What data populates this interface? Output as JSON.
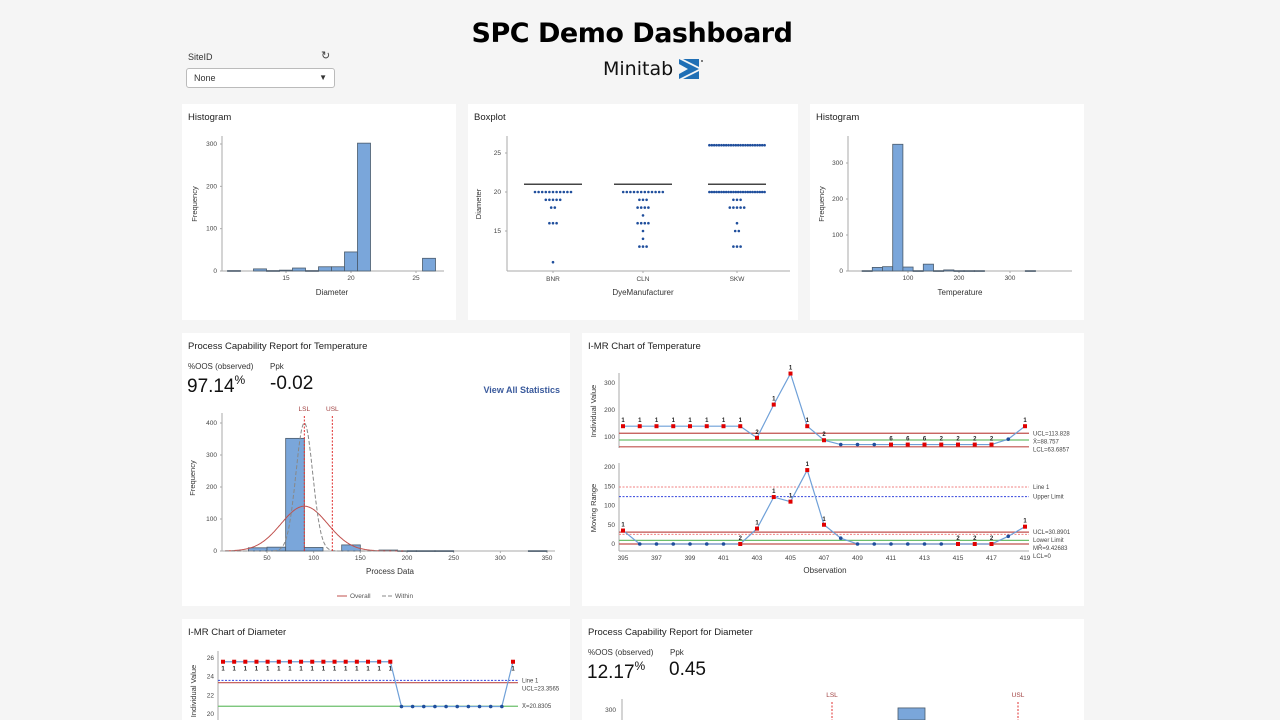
{
  "header": {
    "title": "SPC Demo Dashboard",
    "logo_text": "Minitab",
    "logo_color": "#1f6fb5"
  },
  "filter": {
    "label": "SiteID",
    "value": "None",
    "refresh_icon": "refresh-icon",
    "dropdown_icon": "caret-down-icon"
  },
  "capability_temperature": {
    "oos_label": "%OOS (observed)",
    "oos_value": "97.14",
    "oos_unit": "%",
    "ppk_label": "Ppk",
    "ppk_value": "-0.02",
    "link": "View All Statistics"
  },
  "capability_diameter": {
    "oos_label": "%OOS (observed)",
    "oos_value": "12.17",
    "oos_unit": "%",
    "ppk_label": "Ppk",
    "ppk_value": "0.45"
  },
  "colors": {
    "bar": "#7aa6da",
    "bar_edge": "#4a5a6a",
    "point_blue": "#1f4e9c",
    "point_red": "#e00000",
    "limit_red": "#c0504d",
    "center_green": "#6cbf6c",
    "line": "#6fa0d8"
  },
  "chart_data": [
    {
      "type": "bar",
      "title": "Histogram",
      "xlabel": "Diameter",
      "ylabel": "Frequency",
      "xticks": [
        15,
        20,
        25
      ],
      "yticks": [
        0,
        100,
        200,
        300
      ],
      "x": [
        11,
        13,
        14,
        15,
        16,
        17,
        18,
        19,
        20,
        21,
        26
      ],
      "values": [
        1,
        5,
        1,
        2,
        7,
        1,
        10,
        10,
        45,
        302,
        30
      ]
    },
    {
      "type": "scatter",
      "title": "Boxplot",
      "xlabel": "DyeManufacturer",
      "ylabel": "Diameter",
      "yticks": [
        15,
        20,
        25
      ],
      "categories": [
        "BNR",
        "CLN",
        "SKW"
      ],
      "groups": [
        {
          "mean": 21,
          "points": [
            [
              20,
              11
            ],
            [
              19,
              5
            ],
            [
              18,
              2
            ],
            [
              16,
              3
            ],
            [
              11,
              1
            ]
          ]
        },
        {
          "mean": 21,
          "points": [
            [
              20,
              12
            ],
            [
              19,
              3
            ],
            [
              18,
              4
            ],
            [
              17,
              1
            ],
            [
              16,
              4
            ],
            [
              15,
              1
            ],
            [
              14,
              1
            ],
            [
              13,
              3
            ]
          ]
        },
        {
          "mean": 21,
          "points": [
            [
              26,
              24
            ],
            [
              20,
              24
            ],
            [
              19,
              3
            ],
            [
              18,
              5
            ],
            [
              16,
              1
            ],
            [
              15,
              2
            ],
            [
              13,
              3
            ]
          ]
        }
      ]
    },
    {
      "type": "bar",
      "title": "Histogram",
      "xlabel": "Temperature",
      "ylabel": "Frequency",
      "xticks": [
        100,
        200,
        300
      ],
      "yticks": [
        0,
        100,
        200,
        300
      ],
      "bin_width": 20,
      "x": [
        20,
        40,
        60,
        80,
        100,
        120,
        140,
        160,
        180,
        200,
        220,
        240,
        340
      ],
      "values": [
        1,
        10,
        12,
        352,
        11,
        1,
        19,
        1,
        3,
        1,
        1,
        1,
        1
      ]
    },
    {
      "type": "bar",
      "title": "Process Capability Report for Temperature",
      "xlabel": "Process Data",
      "ylabel": "Frequency",
      "xticks": [
        50,
        100,
        150,
        200,
        250,
        300,
        350
      ],
      "yticks": [
        0,
        100,
        200,
        300,
        400
      ],
      "bin_width": 20,
      "x": [
        40,
        60,
        80,
        100,
        140,
        180,
        200,
        220,
        240,
        340
      ],
      "values": [
        10,
        12,
        352,
        11,
        19,
        3,
        1,
        1,
        1,
        1
      ],
      "spec_limits": [
        {
          "label": "LSL",
          "value": 90
        },
        {
          "label": "USL",
          "value": 120
        }
      ],
      "curves": [
        {
          "name": "Overall",
          "mean": 90,
          "peak": 140,
          "sd": 25,
          "color": "#c0504d",
          "style": "solid"
        },
        {
          "name": "Within",
          "mean": 90,
          "peak": 400,
          "sd": 9,
          "color": "#888888",
          "style": "dashed"
        }
      ],
      "legend": "bottom"
    },
    {
      "type": "line",
      "title": "I-MR Chart of Temperature",
      "xlabel": "Observation",
      "x": [
        395,
        396,
        397,
        398,
        399,
        400,
        401,
        402,
        403,
        404,
        405,
        406,
        407,
        408,
        409,
        410,
        411,
        412,
        413,
        414,
        415,
        416,
        417,
        418,
        419
      ],
      "xticks": [
        395,
        397,
        399,
        401,
        403,
        405,
        407,
        409,
        411,
        413,
        415,
        417,
        419
      ],
      "individual": {
        "ylabel": "Individual Value",
        "yticks": [
          100,
          200,
          300
        ],
        "values": [
          140,
          140,
          140,
          140,
          140,
          140,
          140,
          140,
          97,
          220,
          335,
          140,
          88,
          72,
          72,
          72,
          72,
          72,
          72,
          72,
          72,
          72,
          72,
          92,
          140
        ],
        "flags": [
          "1",
          "1",
          "1",
          "1",
          "1",
          "1",
          "1",
          "1",
          "2",
          "1",
          "1",
          "1",
          "2",
          "",
          "",
          "",
          "6",
          "6",
          "6",
          "2",
          "2",
          "2",
          "2",
          "",
          "1"
        ],
        "limits": [
          {
            "label": "UCL=113.828",
            "value": 113.828,
            "color": "#c0504d",
            "style": "solid"
          },
          {
            "label": "X̄=88.757",
            "value": 88.757,
            "color": "#6cbf6c",
            "style": "solid"
          },
          {
            "label": "LCL=63.6857",
            "value": 63.6857,
            "color": "#c0504d",
            "style": "solid"
          }
        ]
      },
      "moving_range": {
        "ylabel": "Moving Range",
        "yticks": [
          0,
          50,
          100,
          150,
          200
        ],
        "values": [
          35,
          0,
          0,
          0,
          0,
          0,
          0,
          0,
          40,
          122,
          110,
          192,
          50,
          15,
          0,
          0,
          0,
          0,
          0,
          0,
          0,
          0,
          0,
          20,
          45
        ],
        "flags": [
          "1",
          "",
          "",
          "",
          "",
          "",
          "",
          "2",
          "1",
          "1",
          "1",
          "1",
          "1",
          "",
          "",
          "",
          "",
          "",
          "",
          "",
          "2",
          "2",
          "2",
          "",
          "1"
        ],
        "limits": [
          {
            "label": "Line 1",
            "value": 148,
            "color": "#f08080",
            "style": "dotted"
          },
          {
            "label": "Upper Limit",
            "value": 123,
            "color": "#3344dd",
            "style": "dotted"
          },
          {
            "label": "UCL=30.8901",
            "value": 30.8901,
            "color": "#c0504d",
            "style": "solid"
          },
          {
            "label": "Lower Limit",
            "value": 25,
            "color": "#f08080",
            "style": "dotted"
          },
          {
            "label": "MR̄=9.42683",
            "value": 9.42683,
            "color": "#6cbf6c",
            "style": "solid"
          },
          {
            "label": "LCL=0",
            "value": 0,
            "color": "#c0504d",
            "style": "solid"
          }
        ]
      }
    },
    {
      "type": "line",
      "title": "I-MR Chart of Diameter",
      "individual": {
        "ylabel": "Individual Value",
        "yticks": [
          20,
          22,
          24,
          26
        ],
        "values": [
          25.6,
          25.6,
          25.6,
          25.6,
          25.6,
          25.6,
          25.6,
          25.6,
          25.6,
          25.6,
          25.6,
          25.6,
          25.6,
          25.6,
          25.6,
          25.6,
          20.8,
          20.8,
          20.8,
          20.8,
          20.8,
          20.8,
          20.8,
          20.8,
          20.8,
          20.8,
          25.6
        ],
        "flags": [
          "1",
          "1",
          "1",
          "1",
          "1",
          "1",
          "1",
          "1",
          "1",
          "1",
          "1",
          "1",
          "1",
          "1",
          "1",
          "1",
          "",
          "",
          "",
          "",
          "",
          "",
          "",
          "",
          "",
          "",
          "1"
        ],
        "limits": [
          {
            "label": "Line 1",
            "value": 23.6,
            "color": "#3344dd",
            "style": "dotted"
          },
          {
            "label": "UCL=23.3565",
            "value": 23.3565,
            "color": "#c0504d",
            "style": "solid"
          },
          {
            "label": "X̄=20.8305",
            "value": 20.8305,
            "color": "#6cbf6c",
            "style": "solid"
          }
        ]
      }
    },
    {
      "type": "bar",
      "title": "Process Capability Report for Diameter",
      "yticks": [
        300
      ],
      "spec_limits": [
        {
          "label": "LSL"
        },
        {
          "label": "USL"
        }
      ],
      "values": [
        302
      ]
    }
  ]
}
